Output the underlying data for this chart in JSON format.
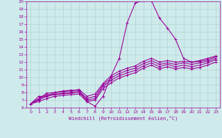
{
  "background_color": "#ceeaea",
  "grid_color": "#aacece",
  "line_color": "#990099",
  "marker": "+",
  "xlabel": "Windchill (Refroidissement éolien,°C)",
  "xlim": [
    -0.5,
    23.5
  ],
  "ylim": [
    6,
    20
  ],
  "xticks": [
    0,
    1,
    2,
    3,
    4,
    5,
    6,
    7,
    8,
    9,
    10,
    11,
    12,
    13,
    14,
    15,
    16,
    17,
    18,
    19,
    20,
    21,
    22,
    23
  ],
  "yticks": [
    6,
    7,
    8,
    9,
    10,
    11,
    12,
    13,
    14,
    15,
    16,
    17,
    18,
    19,
    20
  ],
  "series": [
    [
      6.5,
      7.5,
      7.5,
      8.0,
      8.2,
      8.3,
      8.3,
      6.8,
      6.2,
      7.5,
      10.2,
      12.5,
      17.2,
      19.8,
      20.1,
      20.1,
      17.8,
      16.5,
      15.0,
      12.5,
      12.0,
      12.2,
      12.5,
      12.8
    ],
    [
      6.5,
      7.2,
      7.9,
      8.0,
      8.1,
      8.2,
      8.4,
      7.5,
      7.8,
      9.2,
      10.2,
      10.8,
      11.2,
      11.5,
      12.1,
      12.5,
      12.0,
      12.2,
      12.0,
      12.1,
      12.0,
      12.1,
      12.3,
      12.7
    ],
    [
      6.5,
      7.1,
      7.7,
      7.8,
      7.9,
      8.0,
      8.2,
      7.2,
      7.5,
      9.0,
      9.9,
      10.5,
      10.9,
      11.2,
      11.8,
      12.2,
      11.7,
      11.9,
      11.7,
      11.9,
      11.7,
      11.9,
      12.1,
      12.5
    ],
    [
      6.5,
      7.0,
      7.5,
      7.7,
      7.8,
      7.9,
      8.0,
      7.0,
      7.2,
      8.8,
      9.6,
      10.2,
      10.6,
      10.9,
      11.5,
      11.9,
      11.4,
      11.7,
      11.4,
      11.6,
      11.4,
      11.6,
      11.9,
      12.3
    ],
    [
      6.5,
      6.8,
      7.2,
      7.5,
      7.6,
      7.7,
      7.8,
      6.8,
      7.0,
      8.5,
      9.3,
      9.9,
      10.3,
      10.6,
      11.2,
      11.6,
      11.1,
      11.4,
      11.1,
      11.3,
      11.1,
      11.3,
      11.6,
      12.0
    ]
  ]
}
